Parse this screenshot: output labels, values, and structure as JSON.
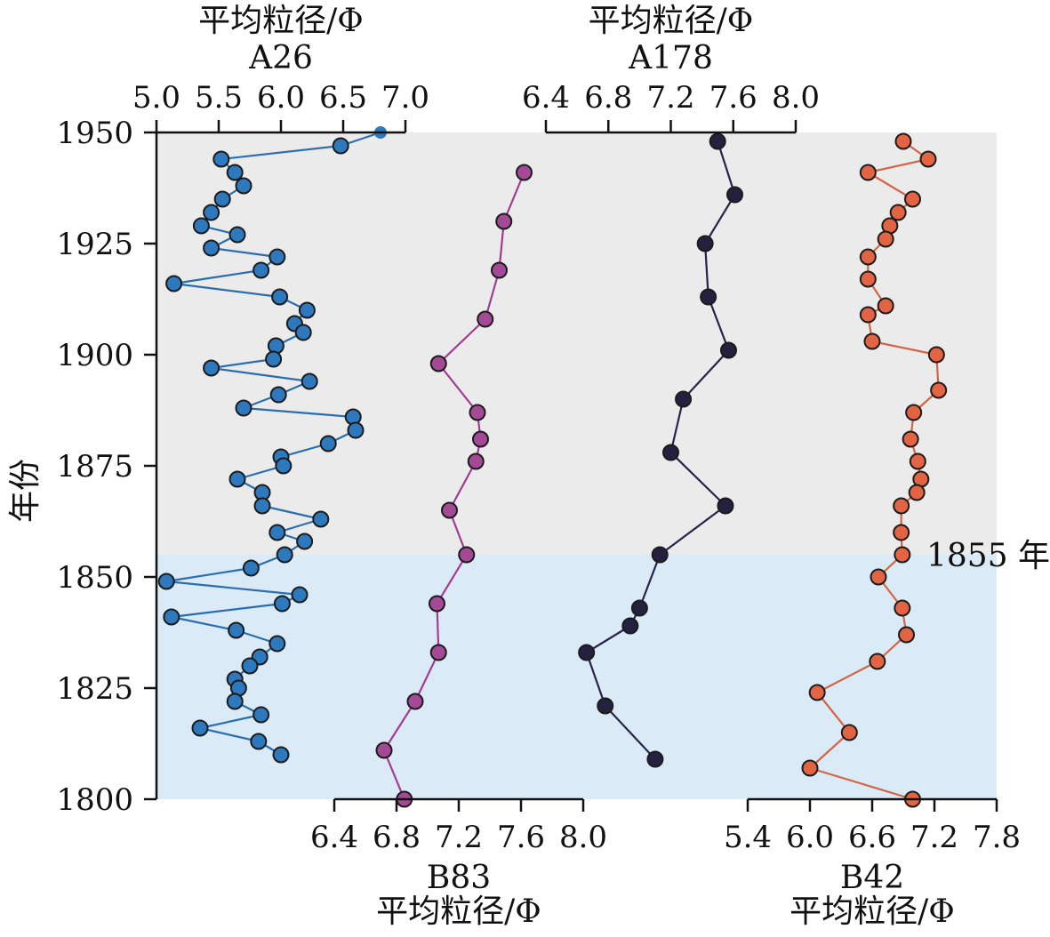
{
  "chart_data": {
    "type": "line",
    "ylabel": "年份",
    "ylim": [
      1800,
      1950
    ],
    "y_ticks": [
      1800,
      1825,
      1850,
      1875,
      1900,
      1925,
      1950
    ],
    "y_tick_labels": [
      "1800",
      "1825",
      "1850",
      "1875",
      "1900",
      "1925",
      "1950"
    ],
    "boundary_year": 1855,
    "annotation": "1855 年",
    "background_bands": [
      {
        "from": 1855,
        "to": 1950,
        "color": "#ebebeb"
      },
      {
        "from": 1800,
        "to": 1855,
        "color": "#daeaf6"
      }
    ],
    "series": [
      {
        "name": "A26",
        "xlabel": "平均粒径/Φ",
        "axis_position": "top",
        "xlim": [
          5.0,
          7.0
        ],
        "x_ticks": [
          5.0,
          5.5,
          6.0,
          6.5,
          7.0
        ],
        "x_tick_labels": [
          "5.0",
          "5.5",
          "6.0",
          "6.5",
          "7.0"
        ],
        "color": "#2a6ead",
        "marker_fill": "#2e78bd",
        "points": [
          [
            6.8,
            1950
          ],
          [
            6.48,
            1947
          ],
          [
            5.52,
            1944
          ],
          [
            5.63,
            1941
          ],
          [
            5.7,
            1938
          ],
          [
            5.53,
            1935
          ],
          [
            5.44,
            1932
          ],
          [
            5.36,
            1929
          ],
          [
            5.65,
            1927
          ],
          [
            5.44,
            1924
          ],
          [
            5.97,
            1922
          ],
          [
            5.84,
            1919
          ],
          [
            5.14,
            1916
          ],
          [
            5.99,
            1913
          ],
          [
            6.21,
            1910
          ],
          [
            6.11,
            1907
          ],
          [
            6.18,
            1905
          ],
          [
            5.96,
            1902
          ],
          [
            5.94,
            1899
          ],
          [
            5.44,
            1897
          ],
          [
            6.23,
            1894
          ],
          [
            5.98,
            1891
          ],
          [
            5.7,
            1888
          ],
          [
            6.58,
            1886
          ],
          [
            6.6,
            1883
          ],
          [
            6.38,
            1880
          ],
          [
            6.0,
            1877
          ],
          [
            6.02,
            1875
          ],
          [
            5.65,
            1872
          ],
          [
            5.85,
            1869
          ],
          [
            5.85,
            1866
          ],
          [
            6.32,
            1863
          ],
          [
            5.97,
            1860
          ],
          [
            6.19,
            1858
          ],
          [
            6.03,
            1855
          ],
          [
            5.76,
            1852
          ],
          [
            5.08,
            1849
          ],
          [
            6.15,
            1846
          ],
          [
            6.01,
            1844
          ],
          [
            5.12,
            1841
          ],
          [
            5.64,
            1838
          ],
          [
            5.97,
            1835
          ],
          [
            5.83,
            1832
          ],
          [
            5.75,
            1830
          ],
          [
            5.63,
            1827
          ],
          [
            5.66,
            1825
          ],
          [
            5.63,
            1822
          ],
          [
            5.84,
            1819
          ],
          [
            5.35,
            1816
          ],
          [
            5.82,
            1813
          ],
          [
            6.0,
            1810
          ]
        ]
      },
      {
        "name": "B83",
        "xlabel": "平均粒径/Φ",
        "axis_position": "bottom",
        "xlim": [
          6.4,
          8.0
        ],
        "x_ticks": [
          6.4,
          6.8,
          7.2,
          7.6,
          8.0
        ],
        "x_tick_labels": [
          "6.4",
          "6.8",
          "7.2",
          "7.6",
          "8.0"
        ],
        "color": "#a03c93",
        "marker_fill": "#a44996",
        "points": [
          [
            7.62,
            1941
          ],
          [
            7.49,
            1930
          ],
          [
            7.46,
            1919
          ],
          [
            7.37,
            1908
          ],
          [
            7.07,
            1898
          ],
          [
            7.32,
            1887
          ],
          [
            7.34,
            1881
          ],
          [
            7.31,
            1876
          ],
          [
            7.14,
            1865
          ],
          [
            7.25,
            1855
          ],
          [
            7.06,
            1844
          ],
          [
            7.07,
            1833
          ],
          [
            6.92,
            1822
          ],
          [
            6.72,
            1811
          ],
          [
            6.85,
            1800
          ]
        ]
      },
      {
        "name": "A178",
        "xlabel": "平均粒径/Φ",
        "axis_position": "top",
        "xlim": [
          6.4,
          8.0
        ],
        "x_ticks": [
          6.4,
          6.8,
          7.2,
          7.6,
          8.0
        ],
        "x_tick_labels": [
          "6.4",
          "6.8",
          "7.2",
          "7.6",
          "8.0"
        ],
        "color": "#262447",
        "marker_fill": "#22213f",
        "points": [
          [
            7.5,
            1948
          ],
          [
            7.61,
            1936
          ],
          [
            7.42,
            1925
          ],
          [
            7.44,
            1913
          ],
          [
            7.57,
            1901
          ],
          [
            7.28,
            1890
          ],
          [
            7.2,
            1878
          ],
          [
            7.55,
            1866
          ],
          [
            7.13,
            1855
          ],
          [
            7.0,
            1843
          ],
          [
            6.94,
            1839
          ],
          [
            6.66,
            1833
          ],
          [
            6.78,
            1821
          ],
          [
            7.1,
            1809
          ]
        ]
      },
      {
        "name": "B42",
        "xlabel": "平均粒径/Φ",
        "axis_position": "bottom",
        "xlim": [
          5.4,
          7.8
        ],
        "x_ticks": [
          5.4,
          6.0,
          6.6,
          7.2,
          7.8
        ],
        "x_tick_labels": [
          "5.4",
          "6.0",
          "6.6",
          "7.2",
          "7.8"
        ],
        "color": "#d36547",
        "marker_fill": "#e26443",
        "points": [
          [
            6.9,
            1948
          ],
          [
            7.14,
            1944
          ],
          [
            6.56,
            1941
          ],
          [
            6.99,
            1935
          ],
          [
            6.85,
            1932
          ],
          [
            6.77,
            1929
          ],
          [
            6.73,
            1926
          ],
          [
            6.56,
            1922
          ],
          [
            6.56,
            1917
          ],
          [
            6.73,
            1911
          ],
          [
            6.56,
            1909
          ],
          [
            6.6,
            1903
          ],
          [
            7.22,
            1900
          ],
          [
            7.24,
            1892
          ],
          [
            7.0,
            1887
          ],
          [
            6.97,
            1881
          ],
          [
            7.04,
            1876
          ],
          [
            7.07,
            1872
          ],
          [
            7.03,
            1869
          ],
          [
            6.88,
            1866
          ],
          [
            6.88,
            1860
          ],
          [
            6.89,
            1855
          ],
          [
            6.66,
            1850
          ],
          [
            6.89,
            1843
          ],
          [
            6.93,
            1837
          ],
          [
            6.65,
            1831
          ],
          [
            6.07,
            1824
          ],
          [
            6.38,
            1815
          ],
          [
            6.0,
            1807
          ],
          [
            6.99,
            1800
          ]
        ]
      }
    ]
  }
}
